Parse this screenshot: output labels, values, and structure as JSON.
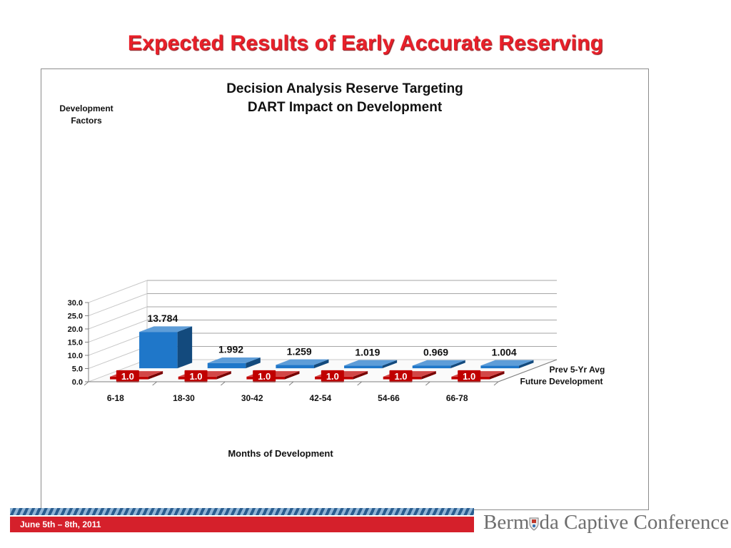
{
  "slide": {
    "title": "Expected Results of Early Accurate Reserving",
    "footer_date": "June 5th – 8th, 2011",
    "logo_pre": "Berm",
    "logo_post": "da Captive Conference"
  },
  "chart_data": {
    "type": "bar",
    "variant": "3d-clustered-depth",
    "title_lines": [
      "Decision Analysis Reserve Targeting",
      "DART Impact on Development"
    ],
    "ylabel_lines": [
      "Development",
      "Factors"
    ],
    "xlabel": "Months of Development",
    "ylim": [
      0,
      30
    ],
    "yticks": [
      "0.0",
      "5.0",
      "10.0",
      "15.0",
      "20.0",
      "25.0",
      "30.0"
    ],
    "categories": [
      "6-18",
      "18-30",
      "30-42",
      "42-54",
      "54-66",
      "66-78"
    ],
    "series": [
      {
        "name": "Prev 5-Yr Avg",
        "values": [
          13.784,
          1.992,
          1.259,
          1.019,
          0.969,
          1.004
        ],
        "labels": [
          "13.784",
          "1.992",
          "1.259",
          "1.019",
          "0.969",
          "1.004"
        ],
        "color": "#1f77c9"
      },
      {
        "name": "Future Development",
        "values": [
          1.0,
          1.0,
          1.0,
          1.0,
          1.0,
          1.0
        ],
        "labels": [
          "1.0",
          "1.0",
          "1.0",
          "1.0",
          "1.0",
          "1.0"
        ],
        "color": "#c00000"
      }
    ],
    "grid": true
  }
}
